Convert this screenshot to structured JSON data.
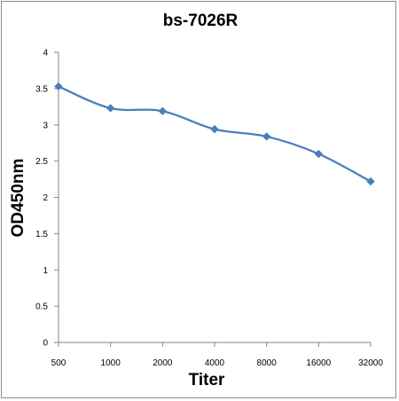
{
  "chart_data": {
    "type": "line",
    "title": "bs-7026R",
    "xlabel": "Titer",
    "ylabel": "OD450nm",
    "categories": [
      "500",
      "1000",
      "2000",
      "4000",
      "8000",
      "16000",
      "32000"
    ],
    "series": [
      {
        "values": [
          3.53,
          3.23,
          3.19,
          2.94,
          2.84,
          2.6,
          2.22
        ]
      }
    ],
    "ylim": [
      0,
      4
    ],
    "yticks": [
      "0",
      "0.5",
      "1",
      "1.5",
      "2",
      "2.5",
      "3",
      "3.5",
      "4"
    ],
    "grid": false,
    "legend": "none",
    "line_color": "#4a7ebb",
    "axis_color": "#868686"
  }
}
